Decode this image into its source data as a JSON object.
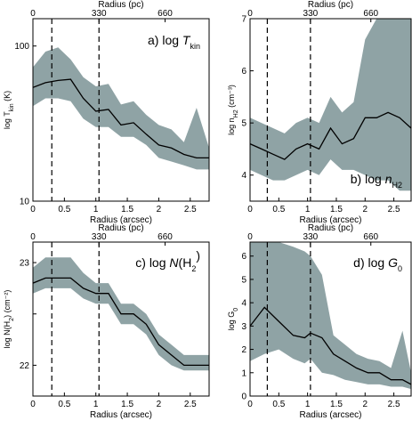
{
  "figure": {
    "top_axis_label": "Radius (pc)",
    "bottom_axis_label": "Radius (arcsec)"
  },
  "chart_data": [
    {
      "type": "line",
      "panel_label": "a) log ",
      "panel_var": "T",
      "panel_sub": "kin",
      "ylabel_main": "log T",
      "ylabel_sub": "kin",
      "ylabel_tail": " (K)",
      "xlabel": "Radius (arcsec)",
      "top_xlabel": "Radius (pc)",
      "xlim": [
        0,
        2.8
      ],
      "ylim": [
        10,
        150
      ],
      "yscale": "log",
      "xticks": [
        0,
        0.5,
        1,
        1.5,
        2,
        2.5
      ],
      "xtick_labels": [
        "0",
        "0.5",
        "1",
        "1.5",
        "2",
        "2.5"
      ],
      "yticks": [
        10,
        100
      ],
      "ytick_labels": [
        "10",
        "100"
      ],
      "top_ticks": [
        0,
        1.05,
        2.1
      ],
      "top_tick_labels": [
        "0",
        "330",
        "660"
      ],
      "vlines": [
        0.3,
        1.05
      ],
      "x": [
        0,
        0.2,
        0.4,
        0.6,
        0.8,
        1.0,
        1.2,
        1.4,
        1.6,
        1.8,
        2.0,
        2.2,
        2.4,
        2.6,
        2.8
      ],
      "series": [
        {
          "y": [
            54,
            58,
            60,
            61,
            46,
            38,
            39,
            31,
            32,
            27,
            23,
            22,
            20,
            19,
            19
          ]
        }
      ],
      "band_low": [
        41,
        46,
        46,
        44,
        34,
        30,
        30,
        26,
        26,
        23,
        19,
        18,
        17,
        16,
        16
      ],
      "band_high": [
        73,
        92,
        98,
        82,
        63,
        55,
        57,
        42,
        44,
        36,
        31,
        29,
        24,
        40,
        22
      ],
      "band_color": "#8fa3a5",
      "line_color": "#000000"
    },
    {
      "type": "line",
      "panel_label": "b) log ",
      "panel_var": "n",
      "panel_sub": "H2",
      "ylabel_main": "log n",
      "ylabel_sub": "H2",
      "ylabel_tail": " (cm⁻³)",
      "xlabel": "Radius (arcsec)",
      "top_xlabel": "Radius (pc)",
      "xlim": [
        0,
        2.8
      ],
      "ylim": [
        3.5,
        7
      ],
      "yscale": "linear",
      "xticks": [
        0,
        0.5,
        1,
        1.5,
        2,
        2.5
      ],
      "xtick_labels": [
        "0",
        "0.5",
        "1",
        "1.5",
        "2",
        "2.5"
      ],
      "yticks": [
        4,
        5,
        6,
        7
      ],
      "ytick_labels": [
        "4",
        "5",
        "6",
        "7"
      ],
      "top_ticks": [
        0,
        1.05,
        2.1
      ],
      "top_tick_labels": [
        "0",
        "330",
        "660"
      ],
      "vlines": [
        0.3,
        1.05
      ],
      "x": [
        0,
        0.2,
        0.4,
        0.6,
        0.8,
        1.0,
        1.2,
        1.4,
        1.6,
        1.8,
        2.0,
        2.2,
        2.4,
        2.6,
        2.8
      ],
      "series": [
        {
          "y": [
            4.6,
            4.5,
            4.4,
            4.3,
            4.5,
            4.6,
            4.5,
            4.9,
            4.6,
            4.7,
            5.1,
            5.1,
            5.2,
            5.1,
            4.9
          ]
        }
      ],
      "band_low": [
        4.1,
        4.0,
        3.9,
        3.9,
        4.0,
        4.1,
        4.0,
        4.3,
        4.1,
        4.1,
        4.0,
        3.9,
        3.9,
        3.7,
        3.7
      ],
      "band_high": [
        5.1,
        5.0,
        4.9,
        4.8,
        5.0,
        5.1,
        5.0,
        5.5,
        5.2,
        5.4,
        6.6,
        7.0,
        7.0,
        7.0,
        7.0
      ],
      "band_color": "#8fa3a5",
      "line_color": "#000000"
    },
    {
      "type": "line",
      "panel_label": "c) log ",
      "panel_var": "N",
      "panel_sub": "H",
      "ylabel_main": "log N(H",
      "ylabel_sub": "2",
      "ylabel_tail": ") (cm⁻²)",
      "xlabel": "Radius (arcsec)",
      "top_xlabel": "Radius (pc)",
      "xlim": [
        0,
        2.8
      ],
      "ylim": [
        21.7,
        23.2
      ],
      "yscale": "linear",
      "xticks": [
        0,
        0.5,
        1,
        1.5,
        2,
        2.5
      ],
      "xtick_labels": [
        "0",
        "0.5",
        "1",
        "1.5",
        "2",
        "2.5"
      ],
      "yticks": [
        22,
        22.5,
        23
      ],
      "ytick_labels": [
        "22",
        "",
        "23"
      ],
      "top_ticks": [
        0,
        1.05,
        2.1
      ],
      "top_tick_labels": [
        "0",
        "330",
        "660"
      ],
      "vlines": [
        0.3,
        1.05
      ],
      "x": [
        0,
        0.2,
        0.4,
        0.6,
        0.8,
        1.0,
        1.2,
        1.4,
        1.6,
        1.8,
        2.0,
        2.2,
        2.4,
        2.6,
        2.8
      ],
      "series": [
        {
          "y": [
            22.8,
            22.85,
            22.85,
            22.85,
            22.75,
            22.7,
            22.7,
            22.5,
            22.5,
            22.4,
            22.2,
            22.1,
            22.0,
            22.0,
            22.0
          ]
        }
      ],
      "band_low": [
        22.7,
        22.75,
        22.75,
        22.75,
        22.65,
        22.6,
        22.6,
        22.4,
        22.4,
        22.3,
        22.1,
        22.0,
        21.95,
        21.95,
        21.95
      ],
      "band_high": [
        22.95,
        23.05,
        23.05,
        23.05,
        22.9,
        22.8,
        22.8,
        22.6,
        22.6,
        22.5,
        22.3,
        22.2,
        22.1,
        22.1,
        22.1
      ],
      "band_color": "#8fa3a5",
      "line_color": "#000000"
    },
    {
      "type": "line",
      "panel_label": "d) log ",
      "panel_var": "G",
      "panel_sub": "0",
      "ylabel_main": "log G",
      "ylabel_sub": "0",
      "ylabel_tail": "",
      "xlabel": "Radius (arcsec)",
      "top_xlabel": "Radius (pc)",
      "xlim": [
        0,
        2.8
      ],
      "ylim": [
        0,
        6.6
      ],
      "yscale": "linear",
      "xticks": [
        0,
        0.5,
        1,
        1.5,
        2,
        2.5
      ],
      "xtick_labels": [
        "0",
        "0.5",
        "1",
        "1.5",
        "2",
        "2.5"
      ],
      "yticks": [
        0,
        1,
        2,
        3,
        4,
        5,
        6
      ],
      "ytick_labels": [
        "0",
        "1",
        "2",
        "3",
        "4",
        "5",
        "6"
      ],
      "top_ticks": [
        0,
        1.05,
        2.1
      ],
      "top_tick_labels": [
        "0",
        "330",
        "660"
      ],
      "vlines": [
        0.3,
        1.05
      ],
      "x": [
        0,
        0.25,
        0.5,
        0.75,
        0.95,
        1.05,
        1.25,
        1.45,
        1.65,
        1.85,
        2.05,
        2.25,
        2.45,
        2.65,
        2.8
      ],
      "series": [
        {
          "y": [
            3.0,
            3.8,
            3.2,
            2.6,
            2.5,
            2.7,
            2.5,
            1.8,
            1.5,
            1.2,
            1.0,
            1.0,
            0.7,
            0.7,
            0.5
          ]
        }
      ],
      "band_low": [
        1.5,
        1.8,
        2.0,
        1.6,
        1.4,
        1.6,
        1.0,
        0.9,
        0.7,
        0.6,
        0.5,
        0.5,
        0.4,
        0.4,
        0.3
      ],
      "band_high": [
        6.6,
        6.6,
        6.6,
        6.4,
        6.2,
        6.0,
        5.2,
        2.6,
        2.2,
        1.8,
        1.6,
        1.5,
        1.2,
        2.8,
        1.0
      ],
      "band_color": "#8fa3a5",
      "line_color": "#000000"
    }
  ]
}
